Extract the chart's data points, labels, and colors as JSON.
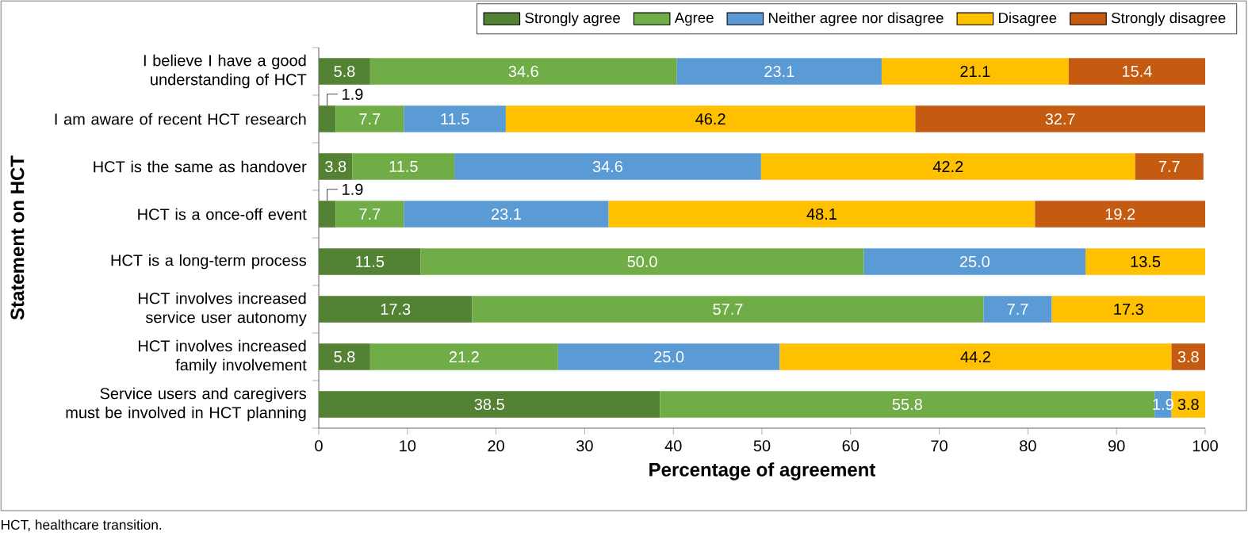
{
  "chart_data": {
    "type": "bar",
    "orientation": "horizontal",
    "stacked": true,
    "xlabel": "Percentage of agreement",
    "ylabel": "Statement on HCT",
    "categories": [
      "I believe I have a good understanding of HCT",
      "I am aware of recent HCT research",
      "HCT is the same as handover",
      "HCT is a once-off event",
      "HCT is a long-term process",
      "HCT involves increased service user autonomy",
      "HCT involves increased family involvement",
      "Service users and caregivers must be involved in HCT planning"
    ],
    "series": [
      {
        "name": "Strongly agree",
        "color": "#548235",
        "values": [
          5.8,
          1.9,
          3.8,
          1.9,
          11.5,
          17.3,
          5.8,
          38.5
        ],
        "value_labels": [
          "5.8",
          "1.9",
          "3.8",
          "1.9",
          "11.5",
          "17.3",
          "5.8",
          "38.5"
        ]
      },
      {
        "name": "Agree",
        "color": "#70ad47",
        "values": [
          34.6,
          7.7,
          11.5,
          7.7,
          50.0,
          57.7,
          21.2,
          55.8
        ],
        "value_labels": [
          "34.6",
          "7.7",
          "11.5",
          "7.7",
          "50.0",
          "57.7",
          "21.2",
          "55.8"
        ]
      },
      {
        "name": "Neither agree nor disagree",
        "color": "#5b9bd5",
        "values": [
          23.1,
          11.5,
          34.6,
          23.1,
          25.0,
          7.7,
          25.0,
          1.9
        ],
        "value_labels": [
          "23.1",
          "11.5",
          "34.6",
          "23.1",
          "25.0",
          "7.7",
          "25.0",
          "1.9"
        ]
      },
      {
        "name": "Disagree",
        "color": "#ffc000",
        "values": [
          21.1,
          46.2,
          42.2,
          48.1,
          13.5,
          17.3,
          44.2,
          3.8
        ],
        "value_labels": [
          "21.1",
          "46.2",
          "42.2",
          "48.1",
          "13.5",
          "17.3",
          "44.2",
          "3.8"
        ]
      },
      {
        "name": "Strongly disagree",
        "color": "#c55a11",
        "values": [
          15.4,
          32.7,
          7.7,
          19.2,
          null,
          null,
          3.8,
          null
        ],
        "value_labels": [
          "15.4",
          "32.7",
          "7.7",
          "19.2",
          null,
          null,
          "3.8",
          null
        ]
      }
    ],
    "xlim": [
      0,
      100
    ],
    "xticks": [
      0,
      10,
      20,
      30,
      40,
      50,
      60,
      70,
      80,
      90,
      100
    ],
    "legend": "top right",
    "annotations": [
      "HCT, healthcare transition."
    ]
  }
}
